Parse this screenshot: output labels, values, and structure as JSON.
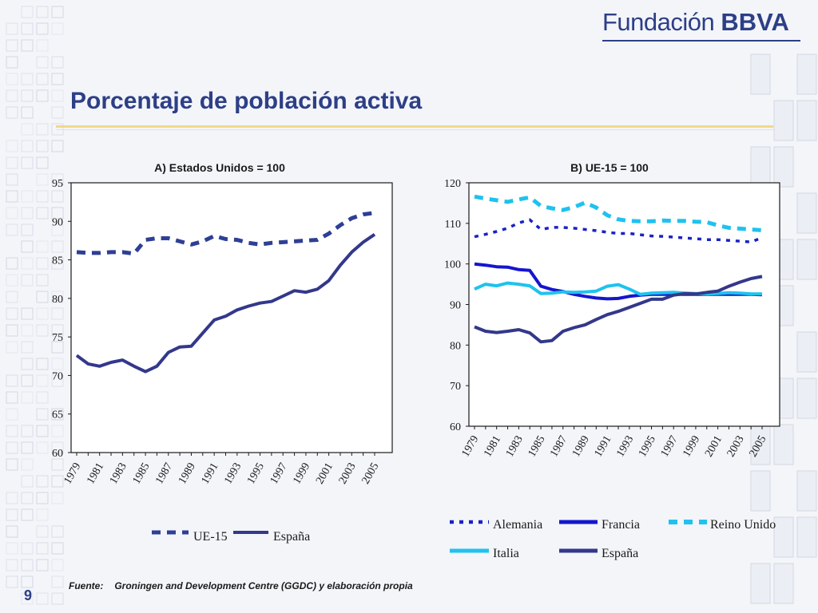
{
  "brand": {
    "name": "Fundación",
    "strong": "BBVA"
  },
  "title": "Porcentaje de población activa",
  "source": {
    "label": "Fuente:",
    "text": "Groningen and Development Centre (GGDC) y elaboración propia"
  },
  "page_number": "9",
  "colors": {
    "title": "#2d3f86",
    "ue15": "#2e3f94",
    "espana": "#33388b",
    "alemania": "#1a22c4",
    "francia": "#1515cf",
    "reino_unido": "#1fc2ee",
    "italia": "#1fc2ee"
  },
  "chart_data": [
    {
      "type": "line",
      "title": "A) Estados Unidos = 100",
      "x": [
        1979,
        1980,
        1981,
        1982,
        1983,
        1984,
        1985,
        1986,
        1987,
        1988,
        1989,
        1990,
        1991,
        1992,
        1993,
        1994,
        1995,
        1996,
        1997,
        1998,
        1999,
        2000,
        2001,
        2002,
        2003,
        2004,
        2005
      ],
      "xticks": [
        "1979",
        "1981",
        "1983",
        "1985",
        "1987",
        "1989",
        "1991",
        "1993",
        "1995",
        "1997",
        "1999",
        "2001",
        "2003",
        "2005"
      ],
      "yticks": [
        "60",
        "65",
        "70",
        "75",
        "80",
        "85",
        "90",
        "95"
      ],
      "ylim": [
        60,
        95
      ],
      "grid": false,
      "legend": "bottom",
      "series": [
        {
          "name": "UE-15",
          "style": "dashed",
          "color": "#2e3f94",
          "values": [
            86.0,
            85.9,
            85.9,
            86.0,
            86.0,
            85.8,
            87.6,
            87.8,
            87.8,
            87.4,
            87.0,
            87.4,
            88.1,
            87.7,
            87.6,
            87.2,
            87.0,
            87.2,
            87.3,
            87.4,
            87.5,
            87.6,
            88.4,
            89.5,
            90.4,
            90.9,
            91.1
          ]
        },
        {
          "name": "España",
          "style": "solid",
          "color": "#33388b",
          "values": [
            72.6,
            71.5,
            71.2,
            71.7,
            72.0,
            71.2,
            70.5,
            71.2,
            73.0,
            73.7,
            73.8,
            75.5,
            77.2,
            77.7,
            78.5,
            79.0,
            79.4,
            79.6,
            80.3,
            81.0,
            80.8,
            81.2,
            82.3,
            84.3,
            86.0,
            87.3,
            88.3
          ]
        }
      ]
    },
    {
      "type": "line",
      "title": "B) UE-15 = 100",
      "x": [
        1979,
        1980,
        1981,
        1982,
        1983,
        1984,
        1985,
        1986,
        1987,
        1988,
        1989,
        1990,
        1991,
        1992,
        1993,
        1994,
        1995,
        1996,
        1997,
        1998,
        1999,
        2000,
        2001,
        2002,
        2003,
        2004,
        2005
      ],
      "xticks": [
        "1979",
        "1981",
        "1983",
        "1985",
        "1987",
        "1989",
        "1991",
        "1993",
        "1995",
        "1997",
        "1999",
        "2001",
        "2003",
        "2005"
      ],
      "yticks": [
        "60",
        "70",
        "80",
        "90",
        "100",
        "110",
        "120"
      ],
      "ylim": [
        60,
        120
      ],
      "grid": false,
      "legend": "bottom",
      "series": [
        {
          "name": "Alemania",
          "style": "dotted",
          "color": "#1a22c4",
          "values": [
            106.7,
            107.3,
            108.0,
            108.8,
            110.1,
            110.9,
            108.5,
            109.0,
            109.0,
            108.8,
            108.5,
            108.2,
            107.8,
            107.5,
            107.5,
            107.2,
            106.9,
            106.8,
            106.6,
            106.4,
            106.2,
            106.0,
            106.0,
            105.8,
            105.6,
            105.4,
            106.5
          ]
        },
        {
          "name": "Francia",
          "style": "solid",
          "color": "#1515cf",
          "values": [
            100.0,
            99.7,
            99.3,
            99.2,
            98.6,
            98.4,
            94.5,
            93.7,
            93.2,
            92.5,
            92.0,
            91.6,
            91.4,
            91.5,
            92.0,
            92.3,
            92.5,
            92.5,
            92.5,
            92.5,
            92.5,
            92.5,
            92.5,
            92.5,
            92.5,
            92.5,
            92.4
          ]
        },
        {
          "name": "Reino Unido",
          "style": "dashed",
          "color": "#1fc2ee",
          "values": [
            116.6,
            116.1,
            115.7,
            115.3,
            115.9,
            116.4,
            114.3,
            113.7,
            113.3,
            114.0,
            115.1,
            113.9,
            112.0,
            111.0,
            110.6,
            110.5,
            110.5,
            110.7,
            110.6,
            110.6,
            110.4,
            110.3,
            109.5,
            108.9,
            108.7,
            108.5,
            108.3
          ]
        },
        {
          "name": "Italia",
          "style": "solid",
          "color": "#1fc2ee",
          "values": [
            93.8,
            95.0,
            94.6,
            95.3,
            95.0,
            94.6,
            92.7,
            92.8,
            93.1,
            93.0,
            93.1,
            93.3,
            94.5,
            94.9,
            93.8,
            92.5,
            92.8,
            92.9,
            93.0,
            92.8,
            92.7,
            92.6,
            92.7,
            92.9,
            92.8,
            92.6,
            92.6
          ]
        },
        {
          "name": "España",
          "style": "solid",
          "color": "#33388b",
          "values": [
            84.5,
            83.4,
            83.1,
            83.4,
            83.8,
            83.0,
            80.8,
            81.1,
            83.4,
            84.3,
            85.0,
            86.3,
            87.5,
            88.3,
            89.3,
            90.3,
            91.3,
            91.3,
            92.3,
            92.7,
            92.6,
            93.0,
            93.3,
            94.5,
            95.5,
            96.4,
            96.9
          ]
        }
      ]
    }
  ]
}
